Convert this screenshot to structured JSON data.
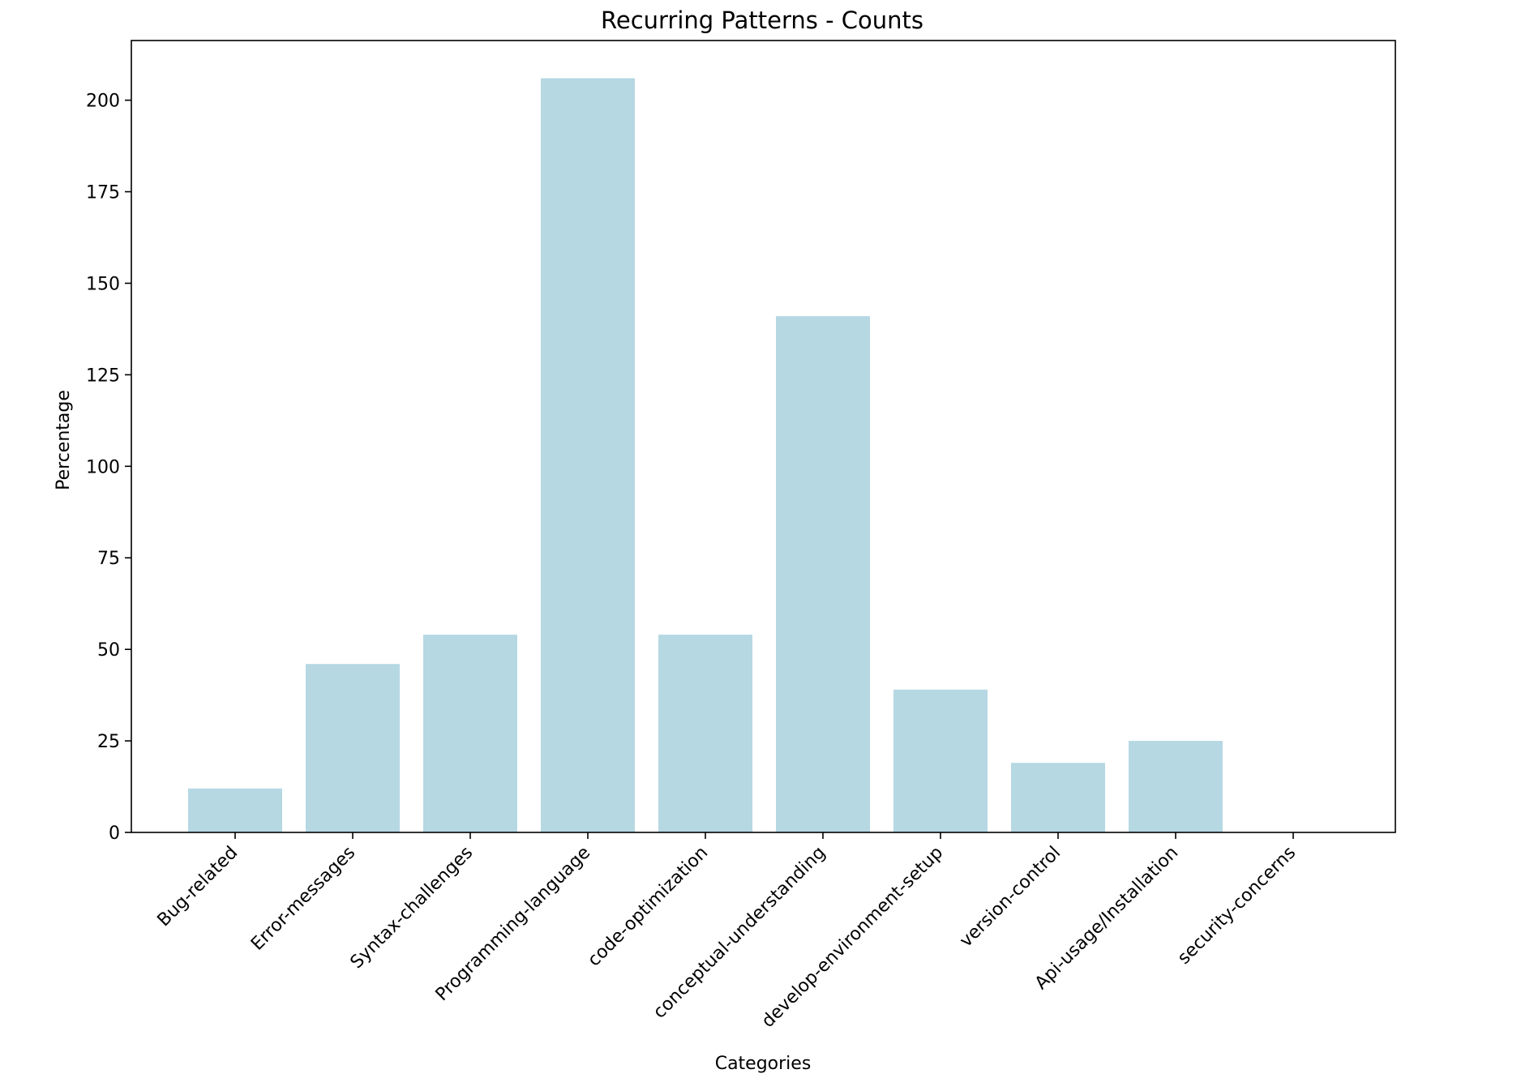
{
  "chart_data": {
    "type": "bar",
    "title": "Recurring Patterns - Counts",
    "xlabel": "Categories",
    "ylabel": "Percentage",
    "categories": [
      "Bug-related",
      "Error-messages",
      "Syntax-challenges",
      "Programming-language",
      "code-optimization",
      "conceptual-understanding",
      "develop-environment-setup",
      "version-control",
      "Api-usage/Installation",
      "security-concerns"
    ],
    "values": [
      12,
      46,
      54,
      206,
      54,
      141,
      39,
      19,
      25,
      0
    ],
    "ylim": [
      0,
      216.3
    ],
    "yticks": [
      0,
      25,
      50,
      75,
      100,
      125,
      150,
      175,
      200
    ],
    "bar_color": "#b5d8e3",
    "grid": false,
    "legend": "none"
  }
}
